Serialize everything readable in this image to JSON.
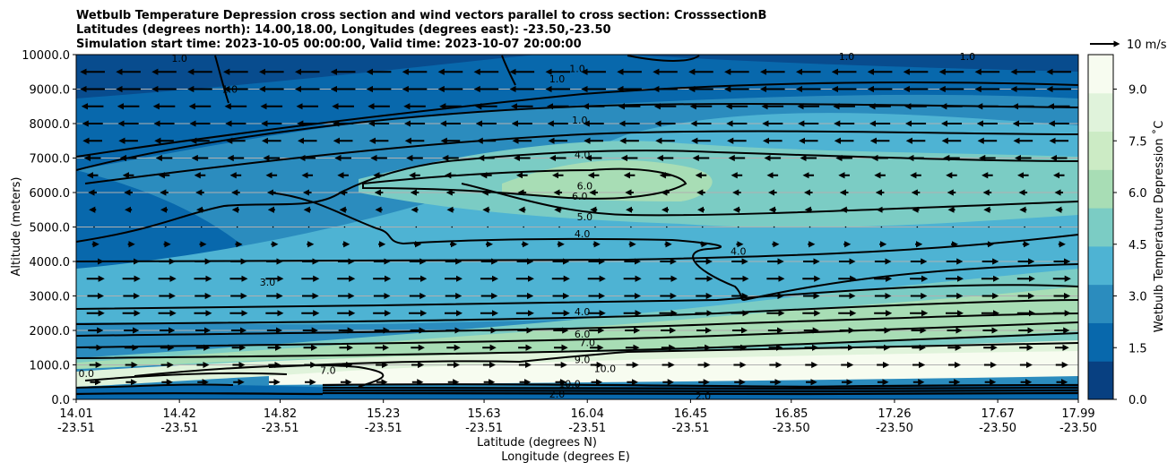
{
  "chart_data": {
    "type": "heatmap",
    "title_lines": [
      "Wetbulb Temperature Depression cross section and wind vectors parallel to cross section: CrosssectionB",
      "Latitudes (degrees north): 14.00,18.00, Longitudes (degrees east): -23.50,-23.50",
      "Simulation start time: 2023-10-05 00:00:00, Valid time: 2023-10-07 20:00:00"
    ],
    "ylabel": "Altitude (meters)",
    "xlabel_lines": [
      "Latitude (degrees N)",
      "Longitude (degrees E)"
    ],
    "ylim": [
      0,
      10000
    ],
    "y_ticks": [
      "0.0",
      "1000.0",
      "2000.0",
      "3000.0",
      "4000.0",
      "5000.0",
      "6000.0",
      "7000.0",
      "8000.0",
      "9000.0",
      "10000.0"
    ],
    "y_tick_values": [
      0,
      1000,
      2000,
      3000,
      4000,
      5000,
      6000,
      7000,
      8000,
      9000,
      10000
    ],
    "xlim": [
      14.01,
      17.99
    ],
    "x_tick_values": [
      14.01,
      14.42,
      14.82,
      15.23,
      15.63,
      16.04,
      16.45,
      16.85,
      17.26,
      17.67,
      17.99
    ],
    "x_ticks_lat": [
      "14.01",
      "14.42",
      "14.82",
      "15.23",
      "15.63",
      "16.04",
      "16.45",
      "16.85",
      "17.26",
      "17.67",
      "17.99"
    ],
    "x_ticks_lon": [
      "-23.51",
      "-23.51",
      "-23.51",
      "-23.51",
      "-23.51",
      "-23.51",
      "-23.51",
      "-23.50",
      "-23.50",
      "-23.50",
      "-23.50"
    ],
    "grid": "horizontal",
    "colorbar": {
      "label": "Wetbulb Temperature Depression ˚C",
      "range": [
        0,
        10
      ],
      "tick_values": [
        0.0,
        1.5,
        3.0,
        4.5,
        6.0,
        7.5,
        9.0
      ],
      "ticks": [
        "0.0",
        "1.5",
        "3.0",
        "4.5",
        "6.0",
        "7.5",
        "9.0"
      ],
      "colors": [
        "#084081",
        "#0868ac",
        "#2b8cbe",
        "#4eb3d3",
        "#7bccc4",
        "#a8ddb5",
        "#ccebc5",
        "#e0f3db",
        "#f7fcf0"
      ]
    },
    "quiver_key": {
      "label": "10 m/s",
      "speed": 10
    },
    "wind_rows": [
      {
        "z": 9500,
        "u": -8.0
      },
      {
        "z": 9000,
        "u": -8.0
      },
      {
        "z": 8500,
        "u": -7.0
      },
      {
        "z": 8000,
        "u": -6.5
      },
      {
        "z": 7500,
        "u": -6.0
      },
      {
        "z": 7000,
        "u": -5.0
      },
      {
        "z": 6500,
        "u": -3.0
      },
      {
        "z": 6000,
        "u": -2.0
      },
      {
        "z": 5500,
        "u": -1.5
      },
      {
        "z": 5000,
        "u": 0.5
      },
      {
        "z": 4500,
        "u": 1.5
      },
      {
        "z": 4000,
        "u": 5.0
      },
      {
        "z": 3500,
        "u": 5.5
      },
      {
        "z": 3000,
        "u": 5.0
      },
      {
        "z": 2500,
        "u": 5.5
      },
      {
        "z": 2000,
        "u": 4.5
      },
      {
        "z": 1500,
        "u": 4.0
      },
      {
        "z": 1000,
        "u": 3.5
      },
      {
        "z": 500,
        "u": 3.0
      }
    ],
    "contour_labels": [
      {
        "text": "1.0",
        "x": 14.42,
        "z": 9900
      },
      {
        "text": "1.0",
        "x": 14.62,
        "z": 9000
      },
      {
        "text": "1.0",
        "x": 16.0,
        "z": 9600
      },
      {
        "text": "1.0",
        "x": 15.92,
        "z": 9300
      },
      {
        "text": "1.0",
        "x": 16.01,
        "z": 8100
      },
      {
        "text": "1.0",
        "x": 17.07,
        "z": 9950
      },
      {
        "text": "1.0",
        "x": 17.55,
        "z": 9950
      },
      {
        "text": "4.0",
        "x": 16.02,
        "z": 7100
      },
      {
        "text": "6.0",
        "x": 16.03,
        "z": 6200
      },
      {
        "text": "6.0",
        "x": 16.01,
        "z": 5900
      },
      {
        "text": "5.0",
        "x": 16.03,
        "z": 5300
      },
      {
        "text": "4.0",
        "x": 16.02,
        "z": 4800
      },
      {
        "text": "4.0",
        "x": 16.64,
        "z": 4300
      },
      {
        "text": "3.0",
        "x": 14.77,
        "z": 3400
      },
      {
        "text": "4.0",
        "x": 16.02,
        "z": 2550
      },
      {
        "text": "6.0",
        "x": 16.02,
        "z": 1900
      },
      {
        "text": "7.0",
        "x": 16.04,
        "z": 1650
      },
      {
        "text": "9.0",
        "x": 16.02,
        "z": 1150
      },
      {
        "text": "10.0",
        "x": 16.11,
        "z": 900
      },
      {
        "text": "10.0",
        "x": 15.97,
        "z": 450
      },
      {
        "text": "7.0",
        "x": 15.01,
        "z": 850
      },
      {
        "text": "2.0",
        "x": 15.92,
        "z": 150
      },
      {
        "text": "2.0",
        "x": 16.5,
        "z": 100
      },
      {
        "text": "0.0",
        "x": 14.05,
        "z": 750
      }
    ]
  }
}
